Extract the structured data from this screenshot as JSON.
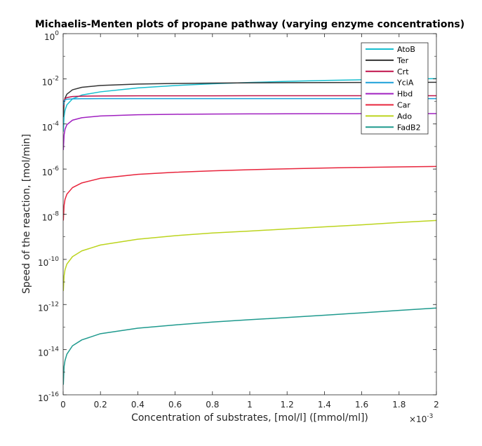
{
  "chart_data": {
    "type": "line",
    "title": "Michaelis-Menten plots of propane pathway (varying enzyme concentrations)",
    "xlabel": "Concentration of substrates, [mol/l] ([mmol/ml])",
    "ylabel": "Speed of the reaction, [mol/min]",
    "x_multiplier_label": "×10",
    "x_multiplier_exp": "-3",
    "xlim": [
      0,
      0.002
    ],
    "ylim": [
      1e-16,
      1
    ],
    "yscale": "log",
    "grid": false,
    "legend_position": "top-right",
    "xticks": [
      {
        "value": 0,
        "label": "0"
      },
      {
        "value": 0.0002,
        "label": "0.2"
      },
      {
        "value": 0.0004,
        "label": "0.4"
      },
      {
        "value": 0.0006,
        "label": "0.6"
      },
      {
        "value": 0.0008,
        "label": "0.8"
      },
      {
        "value": 0.001,
        "label": "1"
      },
      {
        "value": 0.0012,
        "label": "1.2"
      },
      {
        "value": 0.0014,
        "label": "1.4"
      },
      {
        "value": 0.0016,
        "label": "1.6"
      },
      {
        "value": 0.0018,
        "label": "1.8"
      },
      {
        "value": 0.002,
        "label": "2"
      }
    ],
    "yticks": [
      {
        "value": 1,
        "base": "10",
        "exp": "0"
      },
      {
        "value": 0.01,
        "base": "10",
        "exp": "-2"
      },
      {
        "value": 0.0001,
        "base": "10",
        "exp": "-4"
      },
      {
        "value": 1e-06,
        "base": "10",
        "exp": "-6"
      },
      {
        "value": 1e-08,
        "base": "10",
        "exp": "-8"
      },
      {
        "value": 1e-10,
        "base": "10",
        "exp": "-10"
      },
      {
        "value": 1e-12,
        "base": "10",
        "exp": "-12"
      },
      {
        "value": 1e-14,
        "base": "10",
        "exp": "-14"
      },
      {
        "value": 1e-16,
        "base": "10",
        "exp": "-16"
      }
    ],
    "x": [
      1e-06,
      5e-06,
      1e-05,
      2e-05,
      5e-05,
      0.0001,
      0.0002,
      0.0004,
      0.0006,
      0.0008,
      0.001,
      0.0012,
      0.0014,
      0.0016,
      0.0018,
      0.002
    ],
    "series": [
      {
        "name": "AtoB",
        "color": "#17becf",
        "values": [
          4.57e-05,
          0.000219,
          0.000405,
          0.000702,
          0.00129,
          0.00191,
          0.00265,
          0.00393,
          0.00503,
          0.006,
          0.00689,
          0.00768,
          0.0084,
          0.00906,
          0.00965,
          0.0102
        ]
      },
      {
        "name": "Ter",
        "color": "#333333",
        "values": [
          0.000204,
          0.000845,
          0.00139,
          0.00208,
          0.00326,
          0.00419,
          0.00505,
          0.00585,
          0.00622,
          0.00645,
          0.00661,
          0.00672,
          0.0068,
          0.00687,
          0.00692,
          0.00697
        ]
      },
      {
        "name": "Crt",
        "color": "#c0124a",
        "values": [
          0.000565,
          0.0011,
          0.00131,
          0.00148,
          0.00164,
          0.0017,
          0.00174,
          0.00176,
          0.00177,
          0.00177,
          0.00178,
          0.00178,
          0.00178,
          0.00178,
          0.00178,
          0.00178
        ]
      },
      {
        "name": "YciA",
        "color": "#1a9fd8",
        "values": [
          0.000674,
          0.00104,
          0.00116,
          0.00124,
          0.00129,
          0.00131,
          0.00132,
          0.00133,
          0.00133,
          0.00133,
          0.00133,
          0.00133,
          0.00133,
          0.00133,
          0.00133,
          0.00133
        ]
      },
      {
        "name": "Hbd",
        "color": "#a020c0",
        "values": [
          6.99e-06,
          3.23e-05,
          5.81e-05,
          9.26e-05,
          0.000147,
          0.000189,
          0.000225,
          0.000255,
          0.000268,
          0.000275,
          0.000279,
          0.000282,
          0.000285,
          0.000286,
          0.000287,
          0.000288
        ]
      },
      {
        "name": "Car",
        "color": "#e8243c",
        "values": [
          5.26e-09,
          2.46e-08,
          4.52e-08,
          7.74e-08,
          1.51e-07,
          2.44e-07,
          3.9e-07,
          5.86e-07,
          7.24e-07,
          8.33e-07,
          9.4e-07,
          1.03e-06,
          1.11e-06,
          1.19e-06,
          1.25e-06,
          1.31e-06
        ]
      },
      {
        "name": "Ado",
        "color": "#bcd41e",
        "values": [
          4e-12,
          1.87e-11,
          3.45e-11,
          6.21e-11,
          1.32e-10,
          2.38e-10,
          4.33e-10,
          7.83e-10,
          1.12e-09,
          1.47e-09,
          1.8e-09,
          2.23e-09,
          2.76e-09,
          3.4e-09,
          4.3e-09,
          5.3e-09
        ]
      },
      {
        "name": "FadB2",
        "color": "#1f9a8e",
        "values": [
          2.8e-16,
          1.8e-15,
          3.3e-15,
          6.3e-15,
          1.48e-14,
          2.71e-14,
          5.1e-14,
          8.95e-14,
          1.25e-13,
          1.67e-13,
          2.12e-13,
          2.66e-13,
          3.35e-13,
          4.29e-13,
          5.48e-13,
          7e-13
        ]
      }
    ]
  }
}
